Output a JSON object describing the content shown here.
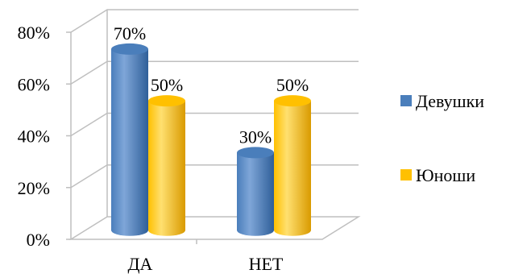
{
  "chart_data": {
    "type": "bar",
    "categories": [
      "ДА",
      "НЕТ"
    ],
    "series": [
      {
        "name": "Девушки",
        "values": [
          70,
          30
        ],
        "color": "#4a7ebb"
      },
      {
        "name": "Юноши",
        "values": [
          50,
          50
        ],
        "color": "#ffc000"
      }
    ],
    "data_labels": [
      [
        "70%",
        "30%"
      ],
      [
        "50%",
        "50%"
      ]
    ],
    "ylim": [
      0,
      80
    ],
    "y_ticks": [
      "0%",
      "20%",
      "40%",
      "60%",
      "80%"
    ],
    "grid": true,
    "legend_position": "right",
    "style": "3d-cylinder"
  }
}
